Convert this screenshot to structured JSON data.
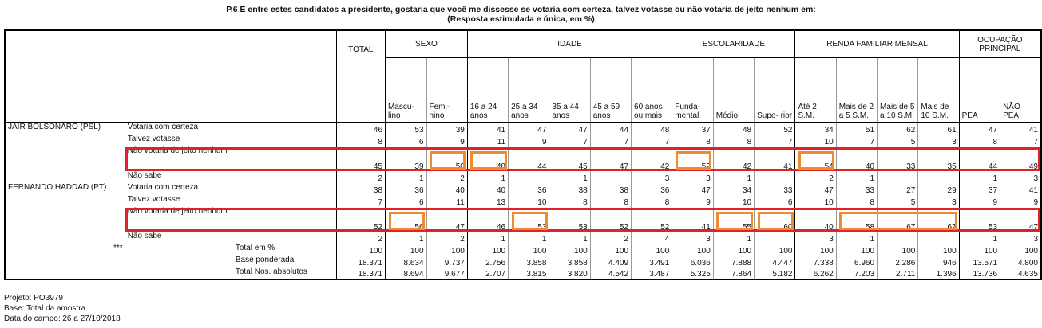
{
  "header": {
    "title": "P.6 E entre estes candidatos a presidente, gostaria que você me dissesse se votaria com certeza, talvez votasse ou não votaria de jeito nenhum em:",
    "subtitle": "(Resposta estimulada e única, em %)"
  },
  "table": {
    "column_groups": [
      {
        "label": "TOTAL",
        "columns": []
      },
      {
        "label": "SEXO",
        "columns": [
          "Mascu-lino",
          "Femi-nino"
        ]
      },
      {
        "label": "IDADE",
        "columns": [
          "16 a 24 anos",
          "25 a 34 anos",
          "35 a 44 anos",
          "45 a 59 anos",
          "60 anos ou mais"
        ]
      },
      {
        "label": "ESCOLARIDADE",
        "columns": [
          "Funda-mental",
          "Médio",
          "Supe- rior"
        ]
      },
      {
        "label": "RENDA FAMILIAR MENSAL",
        "columns": [
          "Até 2 S.M.",
          "Mais de 2 a 5 S.M.",
          "Mais de 5 a 10 S.M.",
          "Mais de 10 S.M."
        ]
      },
      {
        "label": "OCUPAÇÃO PRINCIPAL",
        "columns": [
          "PEA",
          "NÃO PEA"
        ]
      }
    ],
    "sections": [
      {
        "candidate": "JAIR BOLSONARO (PSL)",
        "rows": [
          {
            "label": "Votaria com certeza",
            "values": [
              46,
              53,
              39,
              41,
              47,
              47,
              44,
              48,
              37,
              48,
              52,
              34,
              51,
              62,
              61,
              47,
              41
            ]
          },
          {
            "label": "Talvez votasse",
            "values": [
              8,
              6,
              9,
              11,
              9,
              7,
              7,
              7,
              8,
              8,
              7,
              10,
              7,
              5,
              3,
              8,
              7
            ]
          },
          {
            "label": "Não votaria de jeito nenhum",
            "values": [
              45,
              39,
              50,
              48,
              44,
              45,
              47,
              42,
              52,
              42,
              41,
              54,
              40,
              33,
              35,
              44,
              49
            ]
          },
          {
            "label": "Não sabe",
            "values": [
              2,
              1,
              2,
              1,
              null,
              1,
              null,
              3,
              3,
              1,
              null,
              2,
              1,
              null,
              null,
              1,
              3
            ]
          }
        ]
      },
      {
        "candidate": "FERNANDO HADDAD (PT)",
        "rows": [
          {
            "label": "Votaria com certeza",
            "values": [
              38,
              36,
              40,
              40,
              36,
              38,
              38,
              36,
              47,
              34,
              33,
              47,
              33,
              27,
              29,
              37,
              41
            ]
          },
          {
            "label": "Talvez votasse",
            "values": [
              7,
              6,
              11,
              13,
              10,
              8,
              8,
              8,
              9,
              10,
              6,
              10,
              8,
              5,
              3,
              9,
              9
            ]
          },
          {
            "label": "Não votaria de jeito nenhum",
            "values": [
              52,
              56,
              47,
              46,
              53,
              53,
              52,
              52,
              41,
              55,
              60,
              40,
              58,
              67,
              67,
              53,
              47
            ]
          },
          {
            "label": "Não sabe",
            "values": [
              2,
              1,
              2,
              1,
              1,
              1,
              2,
              4,
              3,
              1,
              null,
              3,
              1,
              null,
              null,
              1,
              3
            ]
          }
        ]
      }
    ],
    "totals": {
      "marker": "***",
      "rows": [
        {
          "label": "Total em %",
          "values": [
            100,
            100,
            100,
            100,
            100,
            100,
            100,
            100,
            100,
            100,
            100,
            100,
            100,
            100,
            100,
            100,
            100
          ]
        },
        {
          "label": "Base ponderada",
          "values": [
            "18.371",
            "8.634",
            "9.737",
            "2.756",
            "3.858",
            "3.858",
            "4.409",
            "3.491",
            "6.036",
            "7.888",
            "4.447",
            "7.338",
            "6.960",
            "2.286",
            "946",
            "13.571",
            "4.800"
          ]
        },
        {
          "label": "Total Nos. absolutos",
          "values": [
            "18.371",
            "8.694",
            "9.677",
            "2.707",
            "3.815",
            "3.820",
            "4.542",
            "3.487",
            "5.325",
            "7.864",
            "5.182",
            "6.262",
            "7.203",
            "2.711",
            "1.396",
            "13.736",
            "4.635"
          ]
        }
      ]
    }
  },
  "footer": {
    "lines": [
      "Projeto: PO3979",
      "Base: Total da amostra",
      "Data do campo: 26 a 27/10/2018"
    ]
  }
}
